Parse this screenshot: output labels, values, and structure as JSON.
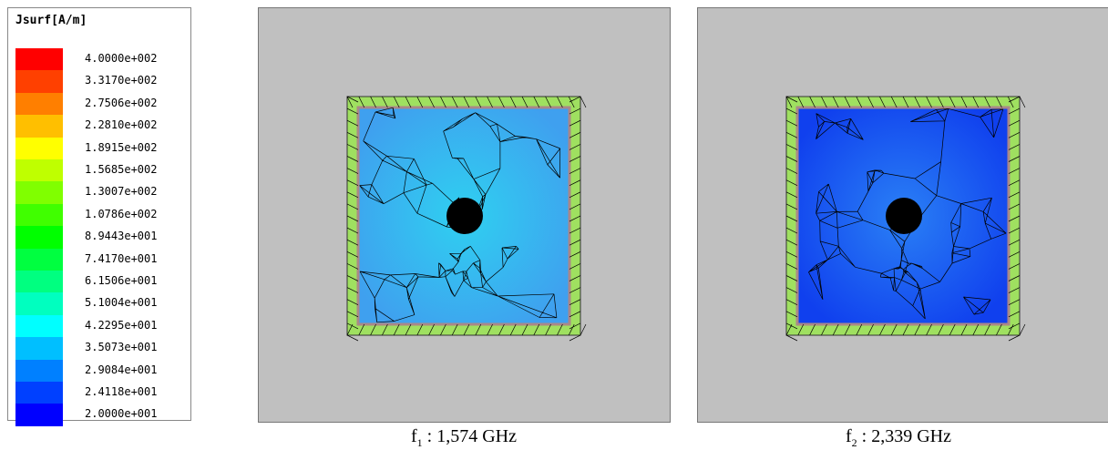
{
  "legend": {
    "title": "Jsurf[A/m]",
    "entries": [
      {
        "label": "4.0000e+002",
        "color": "#ff0000"
      },
      {
        "label": "3.3170e+002",
        "color": "#ff4000"
      },
      {
        "label": "2.7506e+002",
        "color": "#ff7f00"
      },
      {
        "label": "2.2810e+002",
        "color": "#ffbf00"
      },
      {
        "label": "1.8915e+002",
        "color": "#ffff00"
      },
      {
        "label": "1.5685e+002",
        "color": "#bfff00"
      },
      {
        "label": "1.3007e+002",
        "color": "#80ff00"
      },
      {
        "label": "1.0786e+002",
        "color": "#40ff00"
      },
      {
        "label": "8.9443e+001",
        "color": "#00ff00"
      },
      {
        "label": "7.4170e+001",
        "color": "#00ff40"
      },
      {
        "label": "6.1506e+001",
        "color": "#00ff80"
      },
      {
        "label": "5.1004e+001",
        "color": "#00ffbf"
      },
      {
        "label": "4.2295e+001",
        "color": "#00ffff"
      },
      {
        "label": "3.5073e+001",
        "color": "#00bfff"
      },
      {
        "label": "2.9084e+001",
        "color": "#0080ff"
      },
      {
        "label": "2.4118e+001",
        "color": "#0040ff"
      },
      {
        "label": "2.0000e+001",
        "color": "#0000ff"
      }
    ]
  },
  "figures": [
    {
      "caption": {
        "symbol": "f",
        "subscript": "1",
        "text": ": 1,574 GHz"
      }
    },
    {
      "caption": {
        "symbol": "f",
        "subscript": "2",
        "text": ": 2,339 GHz"
      }
    }
  ]
}
